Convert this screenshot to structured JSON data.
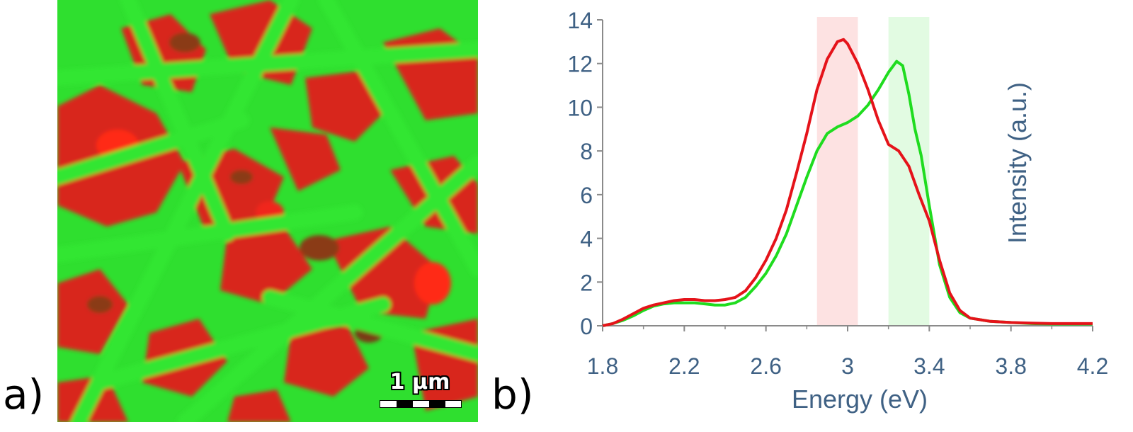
{
  "panel_a": {
    "label": "a)",
    "scale_bar_text": "1 µm",
    "colors": {
      "green": "#2fdf2f",
      "red": "#e0231a",
      "dark": "#7a2a12"
    }
  },
  "panel_b": {
    "label": "b)"
  },
  "chart_data": {
    "type": "line",
    "title": "",
    "xlabel": "Energy (eV)",
    "ylabel": "Intensity (a.u.)",
    "xlim": [
      1.8,
      4.2
    ],
    "ylim": [
      0,
      14
    ],
    "xticks": [
      "1.8",
      "2.2",
      "2.6",
      "3",
      "3.4",
      "3.8",
      "4.2"
    ],
    "yticks": [
      "0",
      "2",
      "4",
      "6",
      "8",
      "10",
      "12",
      "14"
    ],
    "grid": false,
    "axis_color": "#3f6184",
    "highlight_bands": [
      {
        "x_range": [
          2.85,
          3.05
        ],
        "color": "#fde2e2"
      },
      {
        "x_range": [
          3.2,
          3.4
        ],
        "color": "#e2fbe2"
      }
    ],
    "series": [
      {
        "color": "#1fdc1f",
        "x": [
          1.8,
          1.85,
          1.9,
          1.95,
          2.0,
          2.05,
          2.1,
          2.15,
          2.2,
          2.25,
          2.3,
          2.35,
          2.4,
          2.45,
          2.5,
          2.55,
          2.6,
          2.65,
          2.7,
          2.75,
          2.8,
          2.85,
          2.9,
          2.95,
          3.0,
          3.05,
          3.1,
          3.15,
          3.2,
          3.24,
          3.27,
          3.3,
          3.33,
          3.36,
          3.4,
          3.45,
          3.5,
          3.55,
          3.6,
          3.7,
          3.8,
          3.9,
          4.0,
          4.1,
          4.2
        ],
        "y": [
          0,
          0.1,
          0.25,
          0.45,
          0.7,
          0.9,
          1.0,
          1.05,
          1.05,
          1.05,
          1.0,
          0.95,
          0.95,
          1.05,
          1.3,
          1.8,
          2.4,
          3.2,
          4.2,
          5.5,
          6.8,
          8.0,
          8.8,
          9.1,
          9.3,
          9.6,
          10.1,
          10.8,
          11.6,
          12.1,
          11.9,
          10.6,
          9.0,
          7.8,
          5.5,
          2.8,
          1.3,
          0.6,
          0.35,
          0.2,
          0.15,
          0.1,
          0.08,
          0.08,
          0.08
        ]
      },
      {
        "color": "#e5131a",
        "x": [
          1.8,
          1.85,
          1.9,
          1.95,
          2.0,
          2.05,
          2.1,
          2.15,
          2.2,
          2.25,
          2.3,
          2.35,
          2.4,
          2.45,
          2.5,
          2.55,
          2.6,
          2.65,
          2.7,
          2.75,
          2.8,
          2.85,
          2.9,
          2.95,
          2.98,
          3.0,
          3.05,
          3.1,
          3.15,
          3.2,
          3.25,
          3.3,
          3.35,
          3.4,
          3.45,
          3.5,
          3.55,
          3.6,
          3.7,
          3.8,
          3.9,
          4.0,
          4.1,
          4.2
        ],
        "y": [
          0,
          0.1,
          0.3,
          0.55,
          0.8,
          0.95,
          1.05,
          1.15,
          1.2,
          1.2,
          1.15,
          1.15,
          1.2,
          1.3,
          1.6,
          2.2,
          3.0,
          4.0,
          5.3,
          7.0,
          8.8,
          10.8,
          12.2,
          13.0,
          13.1,
          12.9,
          12.0,
          10.8,
          9.4,
          8.3,
          8.0,
          7.3,
          6.0,
          4.8,
          3.0,
          1.5,
          0.7,
          0.35,
          0.2,
          0.15,
          0.12,
          0.1,
          0.1,
          0.1
        ]
      }
    ]
  }
}
